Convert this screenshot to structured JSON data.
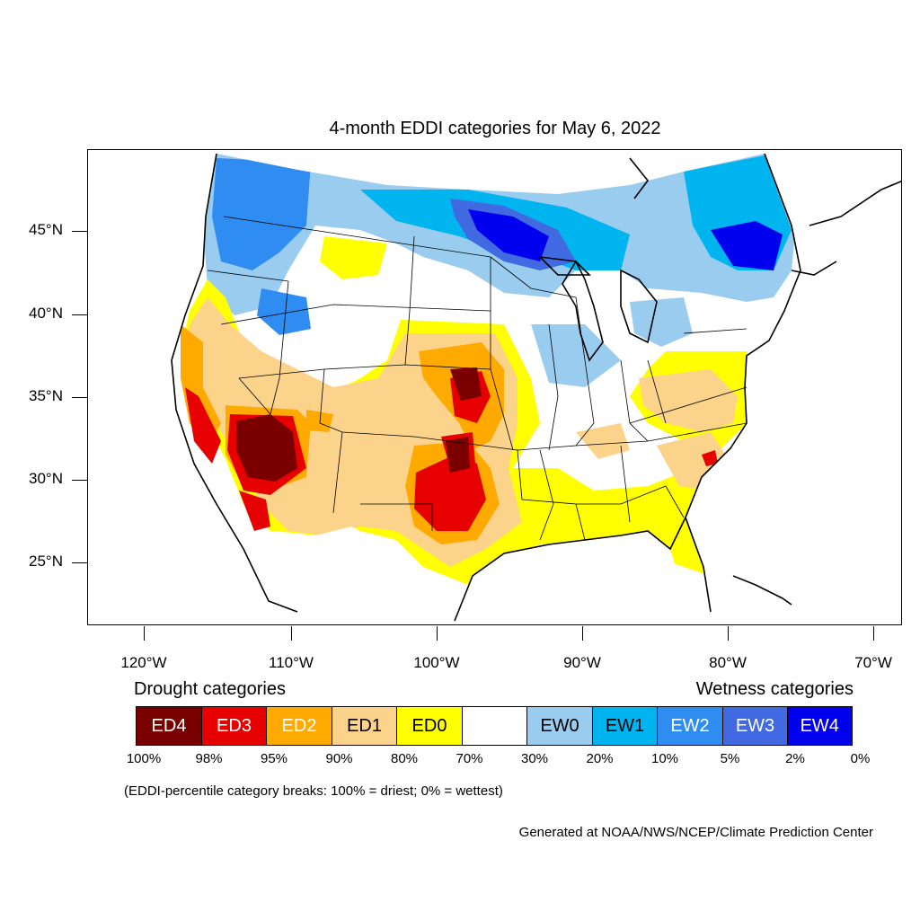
{
  "title": "4-month EDDI categories for May 6, 2022",
  "lat_labels": [
    "45°N",
    "40°N",
    "35°N",
    "30°N",
    "25°N"
  ],
  "lon_labels": [
    "120°W",
    "110°W",
    "100°W",
    "90°W",
    "80°W",
    "70°W"
  ],
  "legend": {
    "drought_heading": "Drought categories",
    "wetness_heading": "Wetness categories",
    "categories": [
      {
        "label": "ED4",
        "color": "#7a0000",
        "text_color": "#ffffff"
      },
      {
        "label": "ED3",
        "color": "#e60000",
        "text_color": "#ffffff"
      },
      {
        "label": "ED2",
        "color": "#ffaa00",
        "text_color": "#ffffff"
      },
      {
        "label": "ED1",
        "color": "#fcd38a",
        "text_color": "#000000"
      },
      {
        "label": "ED0",
        "color": "#ffff00",
        "text_color": "#000000"
      },
      {
        "label": "",
        "color": "#ffffff",
        "text_color": "#000000"
      },
      {
        "label": "EW0",
        "color": "#99ccee",
        "text_color": "#000000"
      },
      {
        "label": "EW1",
        "color": "#00b4f0",
        "text_color": "#000000"
      },
      {
        "label": "EW2",
        "color": "#2f8cf0",
        "text_color": "#ffffff"
      },
      {
        "label": "EW3",
        "color": "#4169e1",
        "text_color": "#ffffff"
      },
      {
        "label": "EW4",
        "color": "#0000ee",
        "text_color": "#ffffff"
      }
    ],
    "percentiles": [
      "100%",
      "98%",
      "95%",
      "90%",
      "80%",
      "70%",
      "30%",
      "20%",
      "10%",
      "5%",
      "2%",
      "0%"
    ]
  },
  "note": "(EDDI-percentile category breaks: 100% = driest; 0% = wettest)",
  "credit": "Generated at NOAA/NWS/NCEP/Climate Prediction Center"
}
